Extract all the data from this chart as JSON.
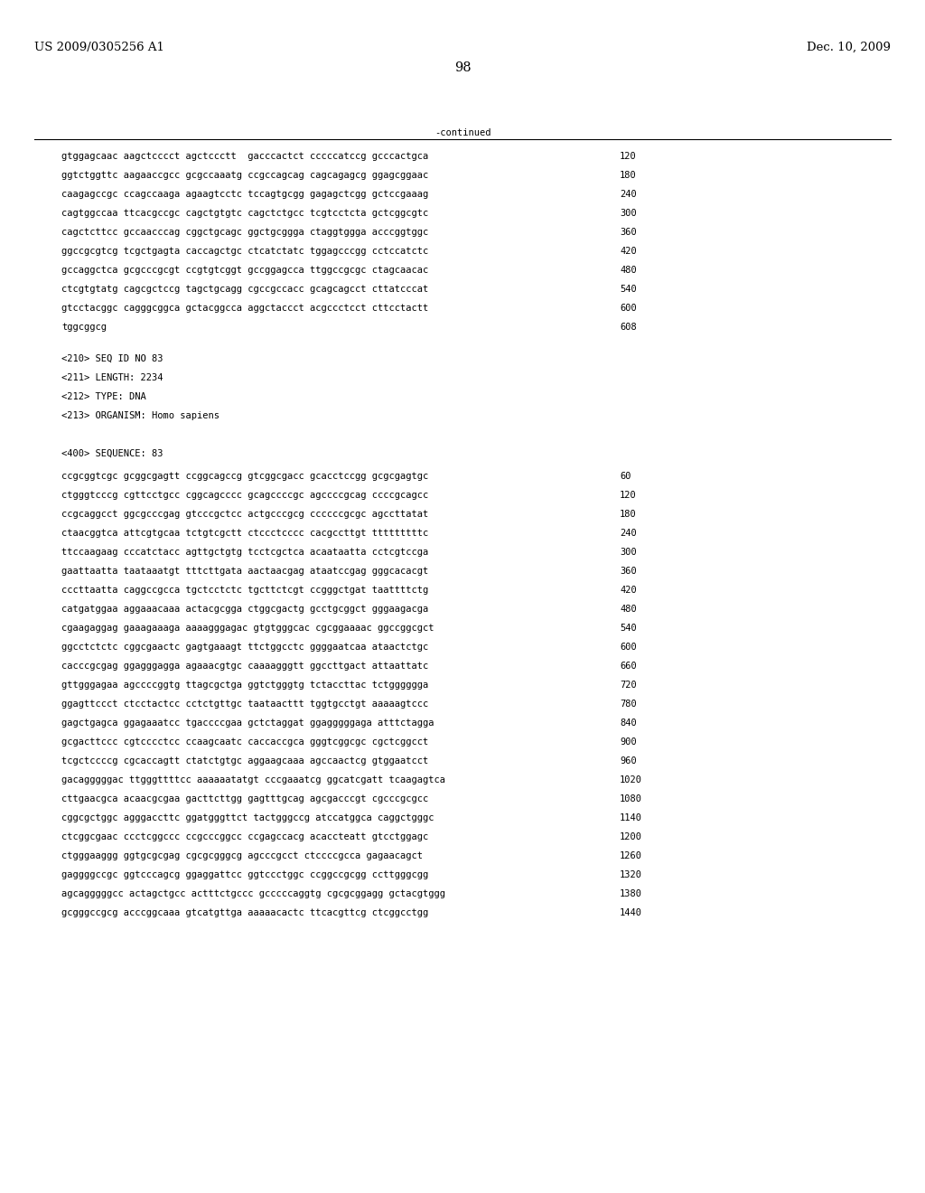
{
  "patent_left": "US 2009/0305256 A1",
  "patent_right": "Dec. 10, 2009",
  "page_number": "98",
  "continued_label": "-continued",
  "background_color": "#ffffff",
  "text_color": "#000000",
  "font_size_header": 9.5,
  "font_size_body": 7.5,
  "font_size_page": 10.5,
  "sequence_lines_top": [
    [
      "gtggagcaac aagctcccct agctccctt  gacccactct cccccatccg gcccactgca",
      "120"
    ],
    [
      "ggtctggttc aagaaccgcc gcgccaaatg ccgccagcag cagcagagcg ggagcggaac",
      "180"
    ],
    [
      "caagagccgc ccagccaaga agaagtcctc tccagtgcgg gagagctcgg gctccgaaag",
      "240"
    ],
    [
      "cagtggccaa ttcacgccgc cagctgtgtc cagctctgcc tcgtcctcta gctcggcgtc",
      "300"
    ],
    [
      "cagctcttcc gccaacccag cggctgcagc ggctgcggga ctaggtggga acccggtggc",
      "360"
    ],
    [
      "ggccgcgtcg tcgctgagta caccagctgc ctcatctatc tggagcccgg cctccatctc",
      "420"
    ],
    [
      "gccaggctca gcgcccgcgt ccgtgtcggt gccggagcca ttggccgcgc ctagcaacac",
      "480"
    ],
    [
      "ctcgtgtatg cagcgctccg tagctgcagg cgccgccacc gcagcagcct cttatcccat",
      "540"
    ],
    [
      "gtcctacggc cagggcggca gctacggcca aggctaccct acgccctcct cttcctactt",
      "600"
    ],
    [
      "tggcggcg",
      "608"
    ]
  ],
  "metadata_lines": [
    "<210> SEQ ID NO 83",
    "<211> LENGTH: 2234",
    "<212> TYPE: DNA",
    "<213> ORGANISM: Homo sapiens",
    "",
    "<400> SEQUENCE: 83"
  ],
  "sequence_lines_bottom": [
    [
      "ccgcggtcgc gcggcgagtt ccggcagccg gtcggcgacc gcacctccgg gcgcgagtgc",
      "60"
    ],
    [
      "ctgggtcccg cgttcctgcc cggcagcccc gcagccccgc agccccgcag ccccgcagcc",
      "120"
    ],
    [
      "ccgcaggcct ggcgcccgag gtcccgctcc actgcccgcg ccccccgcgc agccttatat",
      "180"
    ],
    [
      "ctaacggtca attcgtgcaa tctgtcgctt ctccctcccc cacgccttgt tttttttttc",
      "240"
    ],
    [
      "ttccaagaag cccatctacc agttgctgtg tcctcgctca acaataatta cctcgtccga",
      "300"
    ],
    [
      "gaattaatta taataaatgt tttcttgata aactaacgag ataatccgag gggcacacgt",
      "360"
    ],
    [
      "cccttaatta caggccgcca tgctcctctc tgcttctcgt ccgggctgat taattttctg",
      "420"
    ],
    [
      "catgatggaa aggaaacaaa actacgcgga ctggcgactg gcctgcggct gggaagacga",
      "480"
    ],
    [
      "cgaagaggag gaaagaaaga aaaagggagac gtgtgggcac cgcggaaaac ggccggcgct",
      "540"
    ],
    [
      "ggcctctctc cggcgaactc gagtgaaagt ttctggcctc ggggaatcaa ataactctgc",
      "600"
    ],
    [
      "cacccgcgag ggagggagga agaaacgtgc caaaagggtt ggccttgact attaattatc",
      "660"
    ],
    [
      "gttgggagaa agccccggtg ttagcgctga ggtctgggtg tctaccttac tctgggggga",
      "720"
    ],
    [
      "ggagttccct ctcctactcc cctctgttgc taataacttt tggtgcctgt aaaaagtccc",
      "780"
    ],
    [
      "gagctgagca ggagaaatcc tgaccccgaa gctctaggat ggagggggaga atttctagga",
      "840"
    ],
    [
      "gcgacttccc cgtcccctcc ccaagcaatc caccaccgca gggtcggcgc cgctcggcct",
      "900"
    ],
    [
      "tcgctccccg cgcaccagtt ctatctgtgc aggaagcaaa agccaactcg gtggaatcct",
      "960"
    ],
    [
      "gacagggggac ttgggttttcc aaaaaatatgt cccgaaatcg ggcatcgatt tcaagagtca",
      "1020"
    ],
    [
      "cttgaacgca acaacgcgaa gacttcttgg gagtttgcag agcgacccgt cgcccgcgcc",
      "1080"
    ],
    [
      "cggcgctggc agggaccttc ggatgggttct tactgggccg atccatggca caggctgggc",
      "1140"
    ],
    [
      "ctcggcgaac ccctcggccc ccgcccggcc ccgagccacg acaccteatt gtcctggagc",
      "1200"
    ],
    [
      "ctgggaaggg ggtgcgcgag cgcgcgggcg agcccgcct ctccccgcca gagaacagct",
      "1260"
    ],
    [
      "gaggggccgc ggtcccagcg ggaggattcc ggtccctggc ccggccgcgg ccttgggcgg",
      "1320"
    ],
    [
      "agcagggggcc actagctgcc actttctgccc gcccccaggtg cgcgcggagg gctacgtggg",
      "1380"
    ],
    [
      "gcgggccgcg acccggcaaa gtcatgttga aaaaacactc ttcacgttcg ctcggcctgg",
      "1440"
    ]
  ]
}
